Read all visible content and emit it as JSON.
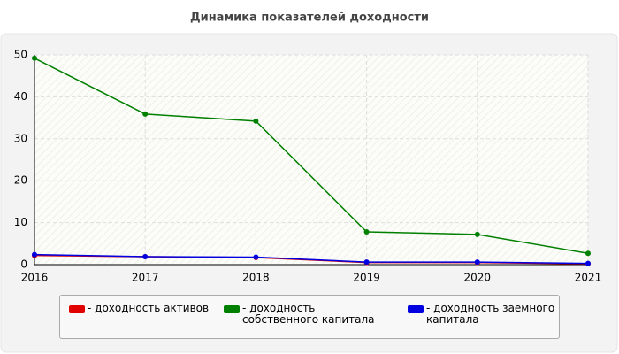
{
  "chart_data": {
    "type": "line",
    "title": "Динамика показателей доходности",
    "x": [
      2016,
      2017,
      2018,
      2019,
      2020,
      2021
    ],
    "xlim": [
      2016,
      2021
    ],
    "xticks": [
      2016,
      2017,
      2018,
      2019,
      2020,
      2021
    ],
    "ylim": [
      0,
      50
    ],
    "yticks": [
      0,
      10,
      20,
      30,
      40,
      50
    ],
    "grid": true,
    "series": [
      {
        "name": "- доходность активов",
        "color": "#e00000",
        "values": [
          2.2,
          1.9,
          1.7,
          0.5,
          0.5,
          0.2
        ]
      },
      {
        "name": "- доходность собственного капитала",
        "color": "#008000",
        "values": [
          49.2,
          35.9,
          34.2,
          7.8,
          7.2,
          2.7
        ]
      },
      {
        "name": "- доходность заемного капитала",
        "color": "#0000e0",
        "values": [
          2.4,
          1.9,
          1.8,
          0.6,
          0.6,
          0.3
        ]
      }
    ]
  }
}
